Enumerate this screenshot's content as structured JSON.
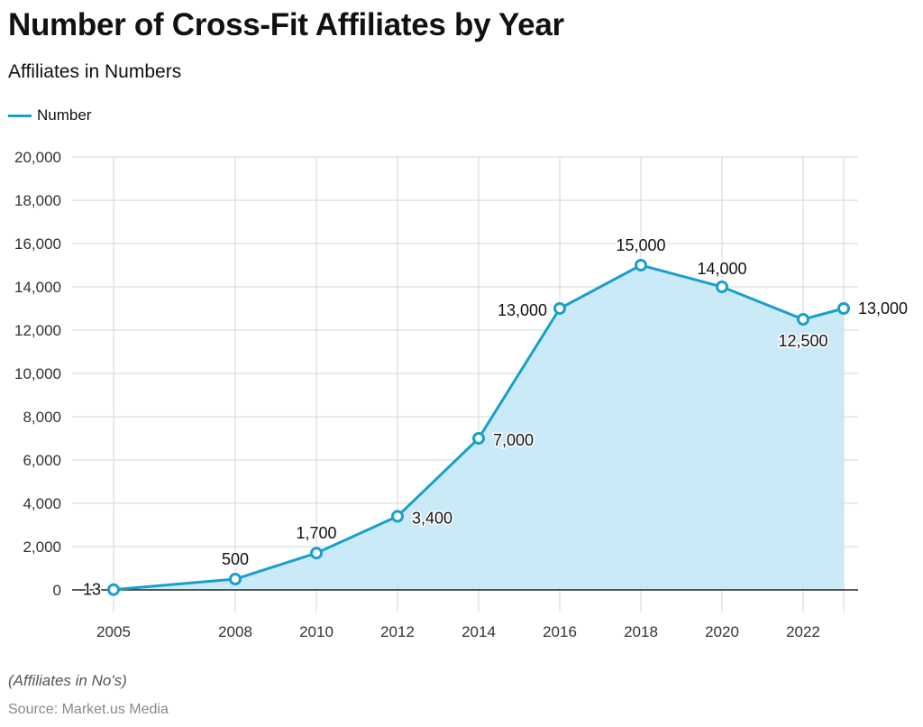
{
  "chart_data": {
    "type": "area",
    "title": "Number of Cross-Fit Affiliates by Year",
    "subtitle": "Affiliates in Numbers",
    "legend": {
      "position": "top-left",
      "entries": [
        "Number"
      ]
    },
    "series": [
      {
        "name": "Number",
        "color": "#1a9fcc",
        "fill": "#c5e8f7",
        "x": [
          2005,
          2008,
          2010,
          2012,
          2014,
          2016,
          2018,
          2020,
          2022,
          2023
        ],
        "values": [
          13,
          500,
          1700,
          3400,
          7000,
          13000,
          15000,
          14000,
          12500,
          13000
        ],
        "labels": [
          "13",
          "500",
          "1,700",
          "3,400",
          "7,000",
          "13,000",
          "15,000",
          "14,000",
          "12,500",
          "13,000"
        ]
      }
    ],
    "ylim": [
      0,
      20000
    ],
    "yticks": [
      0,
      2000,
      4000,
      6000,
      8000,
      10000,
      12000,
      14000,
      16000,
      18000,
      20000
    ],
    "ytick_labels": [
      "0",
      "2,000",
      "4,000",
      "6,000",
      "8,000",
      "10,000",
      "12,000",
      "14,000",
      "16,000",
      "18,000",
      "20,000"
    ],
    "xticks": [
      2005,
      2008,
      2010,
      2012,
      2014,
      2016,
      2018,
      2020,
      2022
    ],
    "xtick_labels": [
      "2005",
      "2008",
      "2010",
      "2012",
      "2014",
      "2016",
      "2018",
      "2020",
      "2022"
    ],
    "grid": true
  },
  "footer": {
    "note": "(Affiliates in No's)",
    "source": "Source: Market.us Media"
  }
}
